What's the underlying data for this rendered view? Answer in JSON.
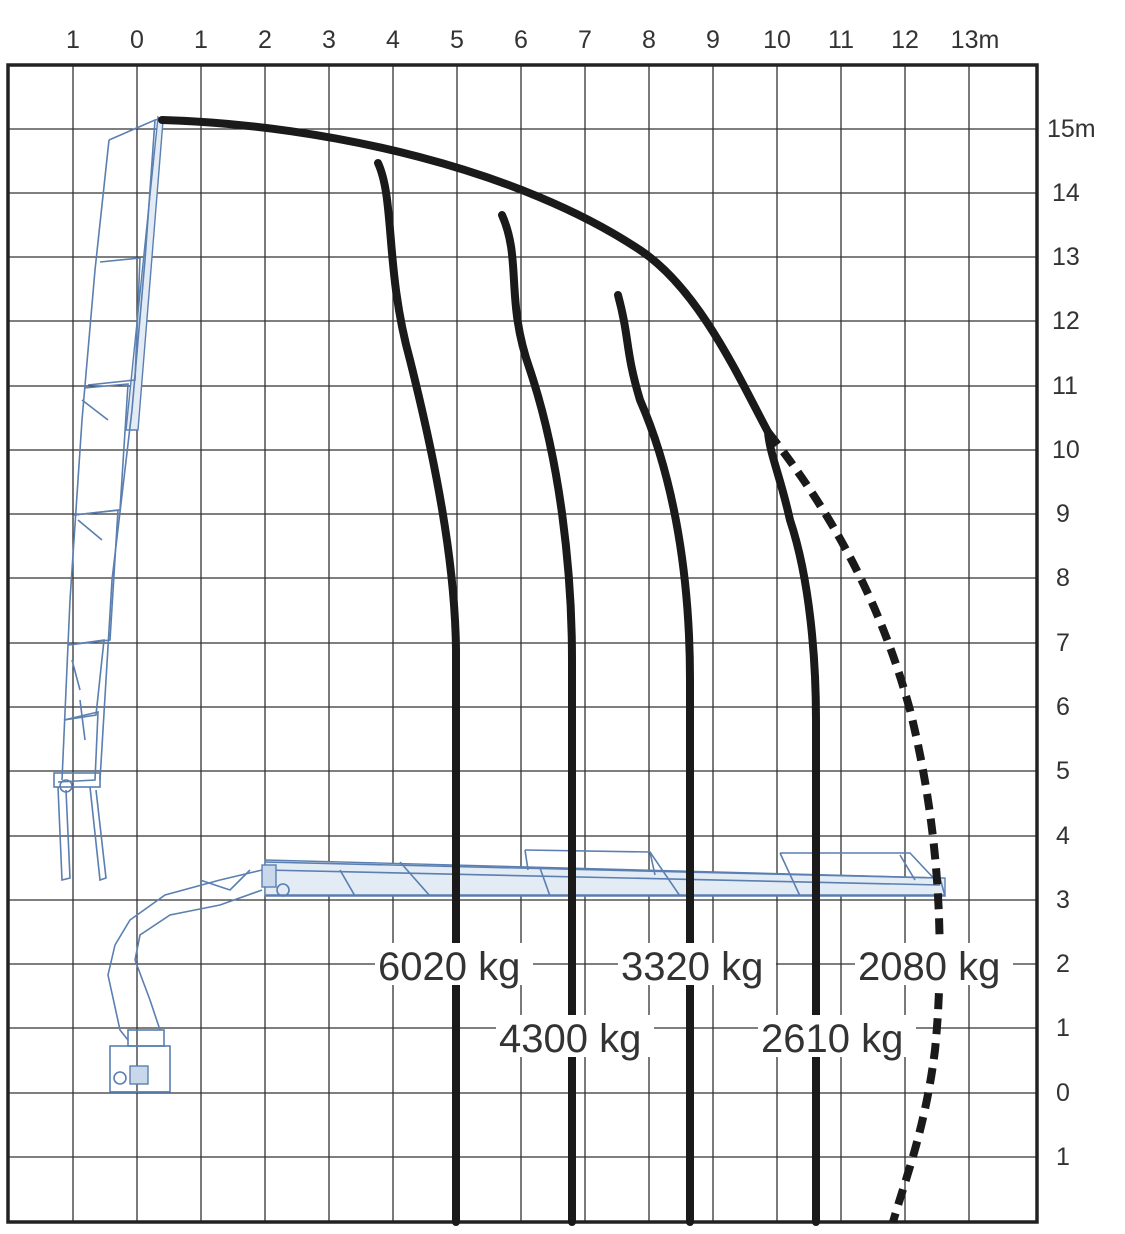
{
  "x_ticks": [
    "1",
    "0",
    "1",
    "2",
    "3",
    "4",
    "5",
    "6",
    "7",
    "8",
    "9",
    "10",
    "11",
    "12",
    "13m"
  ],
  "y_ticks": [
    "15m",
    "14",
    "13",
    "12",
    "11",
    "10",
    "9",
    "8",
    "7",
    "6",
    "5",
    "4",
    "3",
    "2",
    "1",
    "0",
    "1"
  ],
  "load_labels": {
    "l6020": "6020 kg",
    "l4300": "4300 kg",
    "l3320": "3320 kg",
    "l2610": "2610 kg",
    "l2080": "2080 kg"
  },
  "colors": {
    "grid": "#333333",
    "curve": "#1a1a1a",
    "crane": "#5a7fb0"
  },
  "icons": [
    "crane-boom-vertical-icon",
    "crane-boom-horizontal-icon",
    "crane-base-icon"
  ]
}
